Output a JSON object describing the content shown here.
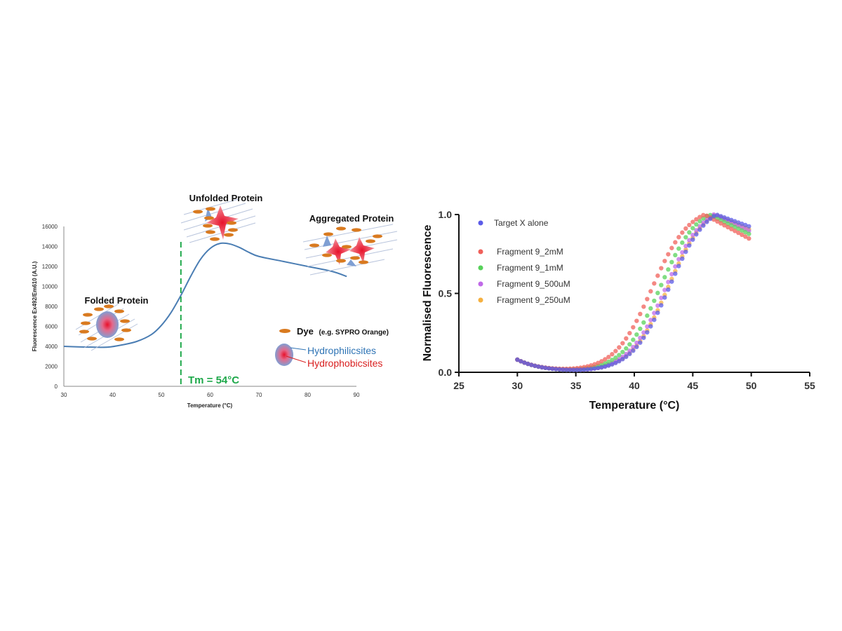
{
  "colors": {
    "curve": "#4a7db3",
    "tm_line": "#1ea84a",
    "dye": "#d97a1f",
    "hydrophilic": "#2f74b5",
    "hydrophobic": "#d92020",
    "series_target": "#5b5be8",
    "series_2mM": "#f0605a",
    "series_1mM": "#57d15a",
    "series_500uM": "#c06ae8",
    "series_250uM": "#f5b040"
  },
  "chart_data": [
    {
      "type": "line",
      "title": "",
      "xlabel": "Temperature (°C)",
      "ylabel": "Fluorescence Ex492/Em610 (A.U.)",
      "xlim": [
        30,
        90
      ],
      "ylim": [
        0,
        16000
      ],
      "xticks": [
        "30",
        "40",
        "50",
        "60",
        "70",
        "80",
        "90"
      ],
      "yticks": [
        "0",
        "2000",
        "4000",
        "6000",
        "8000",
        "10000",
        "12000",
        "14000",
        "16000"
      ],
      "x": [
        30,
        33,
        36,
        39,
        42,
        45,
        48,
        50,
        52,
        54,
        56,
        58,
        60,
        62,
        64,
        66,
        68,
        70,
        75,
        80,
        85,
        88
      ],
      "series": [
        {
          "values": [
            4000,
            3950,
            3920,
            3920,
            4150,
            4500,
            5200,
            6100,
            7400,
            9100,
            11000,
            12700,
            13800,
            14300,
            14250,
            13900,
            13400,
            13000,
            12500,
            12000,
            11500,
            11000
          ]
        }
      ],
      "grid": false,
      "annotations": {
        "tm_label": "Tm = 54°C",
        "tm_value": 54,
        "folded": "Folded Protein",
        "unfolded": "Unfolded Protein",
        "aggregated": "Aggregated Protein",
        "dye_label": "Dye",
        "dye_example": "(e.g. SYPRO Orange)",
        "hydrophilic": "Hydrophilicsites",
        "hydrophobic": "Hydrophobicsites"
      }
    },
    {
      "type": "scatter",
      "title": "",
      "xlabel": "Temperature (°C)",
      "ylabel": "Normalised Fluorescence",
      "xlim": [
        25,
        55
      ],
      "ylim": [
        0,
        1.0
      ],
      "xticks": [
        "25",
        "30",
        "35",
        "40",
        "45",
        "50",
        "55"
      ],
      "yticks": [
        "0.0",
        "0.5",
        "1.0"
      ],
      "x_range": [
        30,
        50
      ],
      "grid": false,
      "legend_position": "top-left",
      "series": [
        {
          "name": "Target X alone",
          "tm": 43.0,
          "peak": 47.0,
          "end": 0.92
        },
        {
          "name": "Fragment 9_2mM",
          "tm": 41.5,
          "peak": 46.0,
          "end": 0.84
        },
        {
          "name": "Fragment 9_1mM",
          "tm": 42.2,
          "peak": 46.4,
          "end": 0.87
        },
        {
          "name": "Fragment 9_500uM",
          "tm": 42.7,
          "peak": 46.8,
          "end": 0.89
        },
        {
          "name": "Fragment 9_250uM",
          "tm": 42.9,
          "peak": 46.9,
          "end": 0.9
        }
      ]
    }
  ]
}
